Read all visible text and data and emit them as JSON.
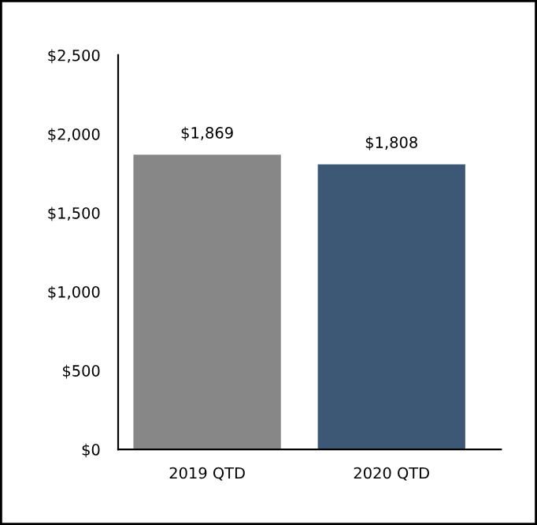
{
  "chart_data": {
    "type": "bar",
    "categories": [
      "2019 QTD",
      "2020 QTD"
    ],
    "values": [
      1869,
      1808
    ],
    "colors": [
      "#878787",
      "#3d5875"
    ],
    "value_labels": [
      "$1,869",
      "$1,808"
    ],
    "ylim": [
      0,
      2500
    ],
    "yticks": [
      {
        "value": 0,
        "label": "$0"
      },
      {
        "value": 500,
        "label": "$500"
      },
      {
        "value": 1000,
        "label": "$1,000"
      },
      {
        "value": 1500,
        "label": "$1,500"
      },
      {
        "value": 2000,
        "label": "$2,000"
      },
      {
        "value": 2500,
        "label": "$2,500"
      }
    ],
    "grid": false,
    "legend": false
  }
}
